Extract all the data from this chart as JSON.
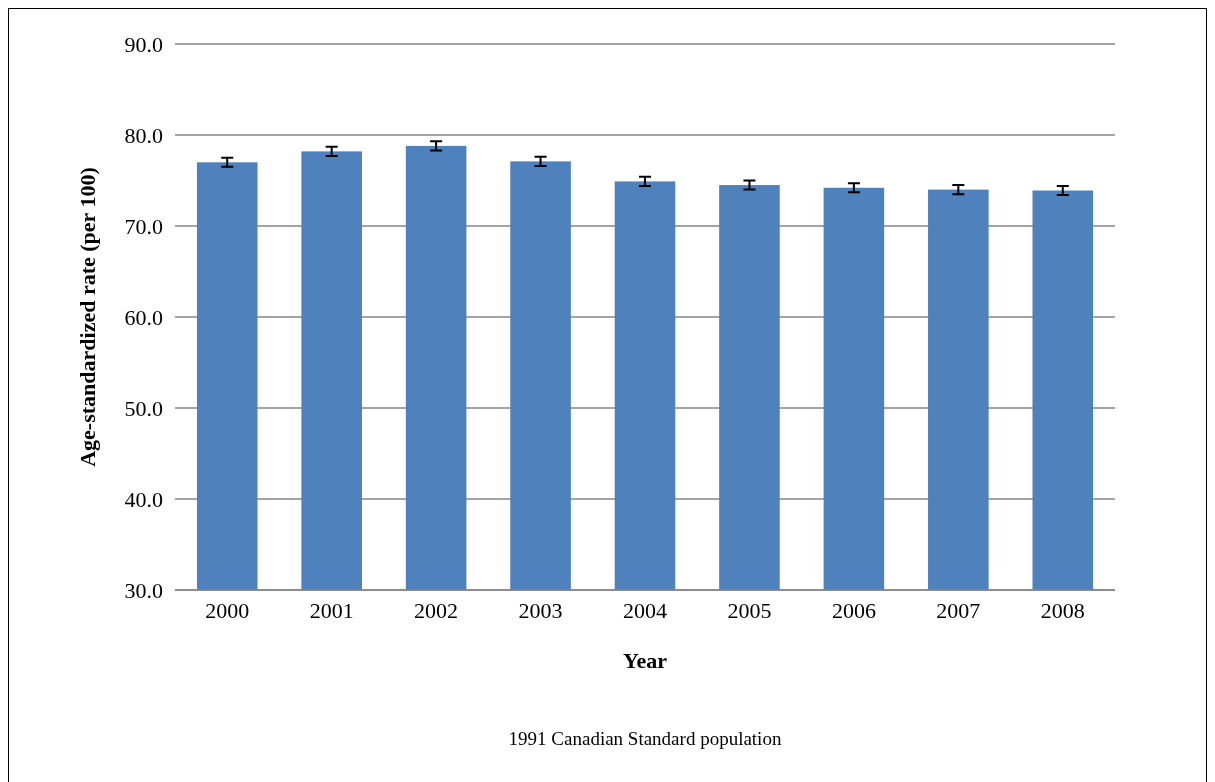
{
  "chart_data": {
    "type": "bar",
    "xlabel": "Year",
    "ylabel": "Age-standardized rate (per 100)",
    "categories": [
      "2000",
      "2001",
      "2002",
      "2003",
      "2004",
      "2005",
      "2006",
      "2007",
      "2008"
    ],
    "values": [
      77.0,
      78.2,
      78.8,
      77.1,
      74.9,
      74.5,
      74.2,
      74.0,
      73.9
    ],
    "errors": [
      0.5,
      0.5,
      0.5,
      0.5,
      0.5,
      0.5,
      0.5,
      0.5,
      0.5
    ],
    "color": "#4f81bd",
    "ylim": [
      30,
      90
    ],
    "yticks": [
      {
        "value": 30,
        "label": "30.0"
      },
      {
        "value": 40,
        "label": "40.0"
      },
      {
        "value": 50,
        "label": "50.0"
      },
      {
        "value": 60,
        "label": "60.0"
      },
      {
        "value": 70,
        "label": "70.0"
      },
      {
        "value": 80,
        "label": "80.0"
      },
      {
        "value": 90,
        "label": "90.0"
      }
    ],
    "grid": "y",
    "annotations": [
      "1991 Canadian Standard population"
    ]
  }
}
